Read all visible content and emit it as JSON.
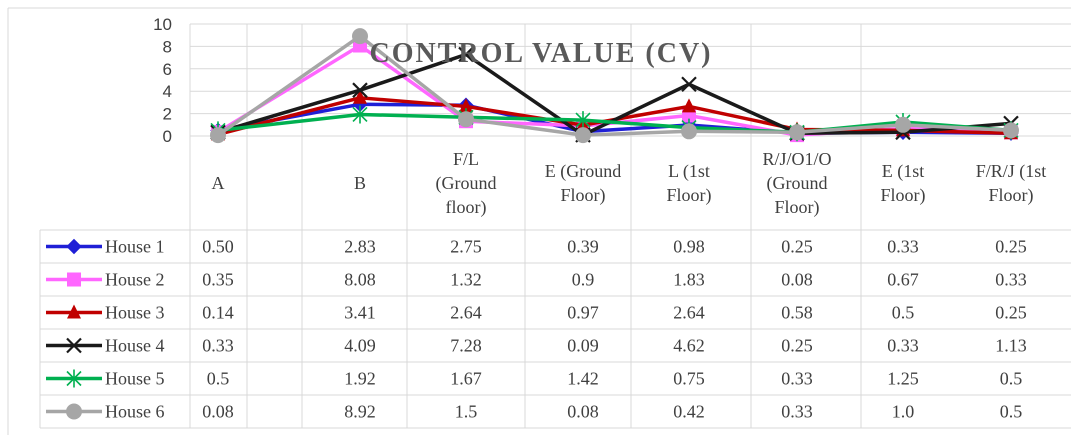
{
  "chart_data": {
    "type": "line",
    "title": "CONTROL VALUE (CV)",
    "xlabel": "",
    "ylabel": "",
    "ylim": [
      0,
      10
    ],
    "yticks": [
      "0",
      "2",
      "4",
      "6",
      "8",
      "10"
    ],
    "categories": [
      [
        "A"
      ],
      [
        "B"
      ],
      [
        "F/L",
        "(Ground",
        "floor)"
      ],
      [
        "E (Ground",
        "Floor)"
      ],
      [
        "L (1st",
        "Floor)"
      ],
      [
        "R/J/O1/O",
        "(Ground",
        "Floor)"
      ],
      [
        "E (1st",
        "Floor)"
      ],
      [
        "F/R/J (1st",
        "Floor)"
      ]
    ],
    "grid": true,
    "legend": "data-table",
    "series": [
      {
        "name": "House 1",
        "color": "#1f1fd6",
        "marker": "diamond",
        "labels": [
          "0.50",
          "2.83",
          "2.75",
          "0.39",
          "0.98",
          "0.25",
          "0.33",
          "0.25"
        ],
        "values": [
          0.5,
          2.83,
          2.75,
          0.39,
          0.98,
          0.25,
          0.33,
          0.25
        ]
      },
      {
        "name": "House 2",
        "color": "#ff66ff",
        "marker": "square",
        "labels": [
          "0.35",
          "8.08",
          "1.32",
          "0.9",
          "1.83",
          "0.08",
          "0.67",
          "0.33"
        ],
        "values": [
          0.35,
          8.08,
          1.32,
          0.9,
          1.83,
          0.08,
          0.67,
          0.33
        ]
      },
      {
        "name": "House 3",
        "color": "#c00000",
        "marker": "triangle",
        "labels": [
          "0.14",
          "3.41",
          "2.64",
          "0.97",
          "2.64",
          "0.58",
          "0.5",
          "0.25"
        ],
        "values": [
          0.14,
          3.41,
          2.64,
          0.97,
          2.64,
          0.58,
          0.5,
          0.25
        ]
      },
      {
        "name": "House 4",
        "color": "#1a1a1a",
        "marker": "x",
        "labels": [
          "0.33",
          "4.09",
          "7.28",
          "0.09",
          "4.62",
          "0.25",
          "0.33",
          "1.13"
        ],
        "values": [
          0.33,
          4.09,
          7.28,
          0.09,
          4.62,
          0.25,
          0.33,
          1.13
        ]
      },
      {
        "name": "House 5",
        "color": "#00b050",
        "marker": "star",
        "labels": [
          "0.5",
          "1.92",
          "1.67",
          "1.42",
          "0.75",
          "0.33",
          "1.25",
          "0.5"
        ],
        "values": [
          0.5,
          1.92,
          1.67,
          1.42,
          0.75,
          0.33,
          1.25,
          0.5
        ]
      },
      {
        "name": "House 6",
        "color": "#a6a6a6",
        "marker": "circle",
        "labels": [
          "0.08",
          "8.92",
          "1.5",
          "0.08",
          "0.42",
          "0.33",
          "1.0",
          "0.5"
        ],
        "values": [
          0.08,
          8.92,
          1.5,
          0.08,
          0.42,
          0.33,
          1.0,
          0.5
        ]
      }
    ]
  }
}
